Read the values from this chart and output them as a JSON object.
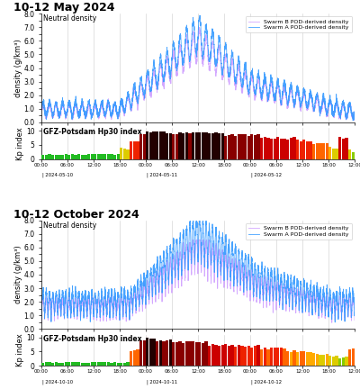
{
  "title1": "10-12 May 2024",
  "title2": "10-12 October 2024",
  "density_label": "Neutral density",
  "kp_label": "GFZ-Potsdam Hp30 index",
  "ylabel_density": "density (g/km³)",
  "ylabel_kp": "Kp index",
  "legend_a": "Swarm A POD-derived density",
  "legend_b": "Swarm B POD-derived density",
  "color_a": "#3399ff",
  "color_b": "#cc99ff",
  "ylim_density": [
    0.0,
    8.0
  ],
  "ylim_kp": [
    0,
    11
  ],
  "n_points": 2880,
  "n_kp_bars": 96,
  "background": "#ffffff",
  "ax_bg": "#ffffff",
  "title_fontsize": 9,
  "label_fontsize": 6,
  "tick_fontsize": 5.5
}
